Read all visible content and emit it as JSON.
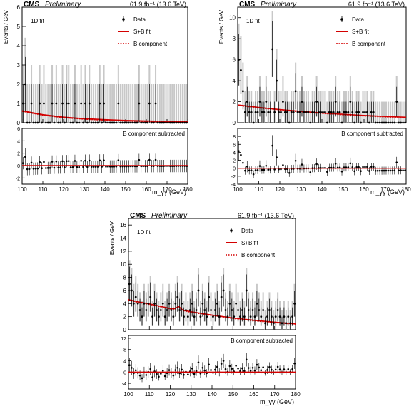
{
  "chart_data": [
    {
      "type": "scatter",
      "experiment": "CMS",
      "status": "Preliminary",
      "lumi_label": "61.9 fb⁻¹ (13.6 TeV)",
      "fit_label": "1D fit",
      "ylabel": "Events / GeV",
      "xlabel": "m_γγ (GeV)",
      "xlim": [
        100,
        180
      ],
      "ylim": [
        0,
        6
      ],
      "yticks": [
        0,
        1,
        2,
        3,
        4,
        5,
        6
      ],
      "xticks": [
        100,
        110,
        120,
        130,
        140,
        150,
        160,
        170,
        180
      ],
      "legend": {
        "data": "Data",
        "fit": "S+B fit",
        "bkg": "B component",
        "placement": "top-right"
      },
      "subpanel_label": "B component subtracted",
      "sub_ylim": [
        -3,
        6
      ],
      "sub_yticks": [
        -2,
        0,
        2,
        4,
        6
      ],
      "fit_curve": {
        "x": [
          100,
          110,
          120,
          130,
          140,
          150,
          160,
          170,
          180
        ],
        "y": [
          0.62,
          0.42,
          0.29,
          0.21,
          0.16,
          0.12,
          0.09,
          0.07,
          0.06
        ]
      },
      "data_points": {
        "x": [
          100.5,
          101.5,
          102.5,
          103.5,
          104.5,
          105.5,
          106.5,
          107.5,
          108.5,
          109.5,
          110.5,
          111.5,
          112.5,
          113.5,
          114.5,
          115.5,
          116.5,
          117.5,
          118.5,
          119.5,
          120.5,
          121.5,
          122.5,
          123.5,
          124.5,
          125.5,
          126.5,
          127.5,
          128.5,
          129.5,
          130.5,
          131.5,
          132.5,
          133.5,
          134.5,
          135.5,
          136.5,
          137.5,
          138.5,
          139.5,
          140.5,
          141.5,
          142.5,
          143.5,
          144.5,
          145.5,
          146.5,
          147.5,
          148.5,
          149.5,
          150.5,
          151.5,
          152.5,
          153.5,
          154.5,
          155.5,
          156.5,
          157.5,
          158.5,
          159.5,
          160.5,
          161.5,
          162.5,
          163.5,
          164.5,
          165.5,
          166.5,
          167.5,
          168.5,
          169.5,
          170.5,
          171.5,
          172.5,
          173.5,
          174.5,
          175.5,
          176.5,
          177.5,
          178.5,
          179.5
        ],
        "y": [
          1,
          2,
          0,
          0,
          1,
          0,
          0,
          0,
          1,
          0,
          1,
          0,
          0,
          0,
          1,
          0,
          1,
          0,
          0,
          1,
          0,
          1,
          1,
          0,
          0,
          1,
          0,
          0,
          1,
          0,
          1,
          0,
          1,
          0,
          0,
          0,
          0,
          1,
          0,
          1,
          0,
          0,
          0,
          0,
          0,
          0,
          1,
          0,
          0,
          0,
          0,
          0,
          0,
          0,
          0,
          0,
          1,
          0,
          0,
          0,
          0,
          1,
          0,
          0,
          1,
          0,
          0,
          0,
          0,
          0,
          0,
          0,
          0,
          0,
          0,
          0,
          0,
          0,
          0,
          0
        ]
      }
    },
    {
      "type": "scatter",
      "experiment": "CMS",
      "status": "Preliminary",
      "lumi_label": "61.9 fb⁻¹ (13.6 TeV)",
      "fit_label": "1D fit",
      "ylabel": "Events / GeV",
      "xlabel": "m_γγ (GeV)",
      "xlim": [
        100,
        180
      ],
      "ylim": [
        0,
        11
      ],
      "yticks": [
        0,
        2,
        4,
        6,
        8,
        10
      ],
      "xticks": [
        100,
        110,
        120,
        130,
        140,
        150,
        160,
        170,
        180
      ],
      "legend": {
        "data": "Data",
        "fit": "S+B fit",
        "bkg": "B component",
        "placement": "top-right"
      },
      "subpanel_label": "B component subtracted",
      "sub_ylim": [
        -4,
        10
      ],
      "sub_yticks": [
        -4,
        -2,
        0,
        2,
        4,
        6,
        8
      ],
      "fit_curve": {
        "x": [
          100,
          110,
          120,
          130,
          140,
          150,
          160,
          170,
          180
        ],
        "y": [
          1.7,
          1.45,
          1.25,
          1.08,
          0.93,
          0.8,
          0.69,
          0.6,
          0.52
        ]
      },
      "data_points": {
        "x": [
          100.5,
          101.5,
          102.5,
          103.5,
          104.5,
          105.5,
          106.5,
          107.5,
          108.5,
          109.5,
          110.5,
          111.5,
          112.5,
          113.5,
          114.5,
          115.5,
          116.5,
          117.5,
          118.5,
          119.5,
          120.5,
          121.5,
          122.5,
          123.5,
          124.5,
          125.5,
          126.5,
          127.5,
          128.5,
          129.5,
          130.5,
          131.5,
          132.5,
          133.5,
          134.5,
          135.5,
          136.5,
          137.5,
          138.5,
          139.5,
          140.5,
          141.5,
          142.5,
          143.5,
          144.5,
          145.5,
          146.5,
          147.5,
          148.5,
          149.5,
          150.5,
          151.5,
          152.5,
          153.5,
          154.5,
          155.5,
          156.5,
          157.5,
          158.5,
          159.5,
          160.5,
          161.5,
          162.5,
          163.5,
          164.5,
          165.5,
          166.5,
          167.5,
          168.5,
          169.5,
          170.5,
          171.5,
          172.5,
          173.5,
          174.5,
          175.5,
          176.5,
          177.5,
          178.5,
          179.5
        ],
        "y": [
          6,
          5,
          3,
          1,
          2,
          1,
          1,
          0,
          1,
          1,
          2,
          1,
          1,
          2,
          1,
          1,
          7,
          1,
          4,
          1,
          1,
          2,
          1,
          1,
          0,
          1,
          1,
          3,
          1,
          1,
          2,
          1,
          1,
          1,
          0,
          1,
          1,
          2,
          1,
          1,
          1,
          1,
          0,
          1,
          1,
          1,
          2,
          1,
          1,
          0,
          1,
          1,
          1,
          2,
          1,
          0,
          1,
          1,
          0,
          1,
          1,
          1,
          0,
          1,
          1,
          0,
          0,
          0,
          0,
          0,
          0,
          0,
          0,
          0,
          0,
          2,
          0,
          0,
          0,
          0
        ]
      }
    },
    {
      "type": "scatter",
      "experiment": "CMS",
      "status": "Preliminary",
      "lumi_label": "61.9 fb⁻¹ (13.6 TeV)",
      "fit_label": "1D fit",
      "ylabel": "Events / GeV",
      "xlabel": "m_γγ (GeV)",
      "xlim": [
        100,
        180
      ],
      "ylim": [
        0,
        17
      ],
      "yticks": [
        0,
        2,
        4,
        6,
        8,
        10,
        12,
        14,
        16
      ],
      "xticks": [
        100,
        110,
        120,
        130,
        140,
        150,
        160,
        170,
        180
      ],
      "legend": {
        "data": "Data",
        "fit": "S+B fit",
        "bkg": "B component",
        "placement": "top-right"
      },
      "subpanel_label": "B component subtracted",
      "sub_ylim": [
        -6,
        13
      ],
      "sub_yticks": [
        -4,
        0,
        4,
        8,
        12
      ],
      "fit_curve": {
        "x": [
          100,
          105,
          110,
          115,
          120,
          122,
          124,
          126,
          130,
          140,
          150,
          160,
          170,
          180
        ],
        "y": [
          4.6,
          4.25,
          3.95,
          3.6,
          3.25,
          3.2,
          3.55,
          3.0,
          2.75,
          2.25,
          1.8,
          1.45,
          1.15,
          0.9
        ]
      },
      "data_points": {
        "x": [
          100.5,
          101.5,
          102.5,
          103.5,
          104.5,
          105.5,
          106.5,
          107.5,
          108.5,
          109.5,
          110.5,
          111.5,
          112.5,
          113.5,
          114.5,
          115.5,
          116.5,
          117.5,
          118.5,
          119.5,
          120.5,
          121.5,
          122.5,
          123.5,
          124.5,
          125.5,
          126.5,
          127.5,
          128.5,
          129.5,
          130.5,
          131.5,
          132.5,
          133.5,
          134.5,
          135.5,
          136.5,
          137.5,
          138.5,
          139.5,
          140.5,
          141.5,
          142.5,
          143.5,
          144.5,
          145.5,
          146.5,
          147.5,
          148.5,
          149.5,
          150.5,
          151.5,
          152.5,
          153.5,
          154.5,
          155.5,
          156.5,
          157.5,
          158.5,
          159.5,
          160.5,
          161.5,
          162.5,
          163.5,
          164.5,
          165.5,
          166.5,
          167.5,
          168.5,
          169.5,
          170.5,
          171.5,
          172.5,
          173.5,
          174.5,
          175.5,
          176.5,
          177.5,
          178.5,
          179.5
        ],
        "y": [
          7,
          6,
          4,
          5,
          4,
          3,
          2,
          4,
          3,
          4,
          5,
          2,
          4,
          3,
          2,
          3,
          4,
          2,
          3,
          4,
          3,
          2,
          4,
          5,
          3,
          4,
          2,
          3,
          2,
          3,
          4,
          2,
          3,
          6,
          2,
          4,
          3,
          2,
          5,
          3,
          2,
          3,
          4,
          2,
          5,
          6,
          3,
          2,
          4,
          3,
          2,
          4,
          3,
          2,
          3,
          2,
          6,
          3,
          2,
          3,
          2,
          4,
          3,
          2,
          3,
          1,
          2,
          3,
          2,
          1,
          2,
          3,
          2,
          1,
          2,
          1,
          2,
          1,
          2,
          4
        ]
      }
    }
  ]
}
